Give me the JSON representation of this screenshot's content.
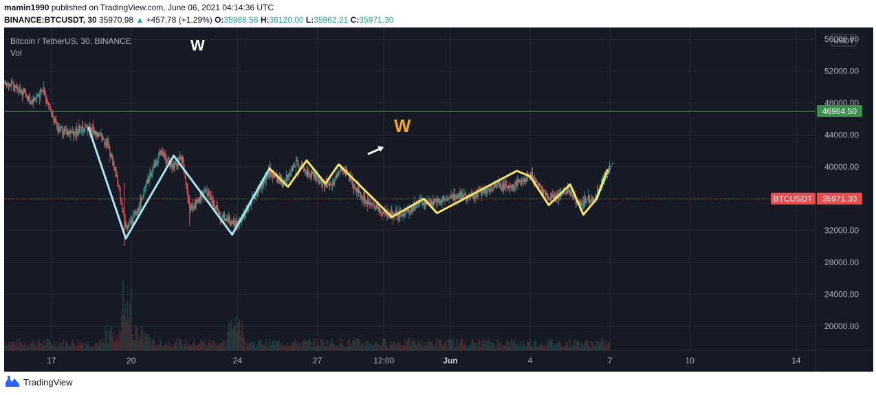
{
  "header": {
    "author": "mamin1990",
    "published_text": "published on TradingView.com, June 06, 2021 04:14:36 UTC",
    "symbol": "BINANCE:BTCUSDT, 30",
    "price": "35970.98",
    "change_icon": "triangle-up-icon",
    "change": "+457.78 (+1.29%)",
    "o_label": "O:",
    "o_value": "35988.56",
    "h_label": "H:",
    "h_value": "36120.00",
    "l_label": "L:",
    "l_value": "35962.21",
    "c_label": "C:",
    "c_value": "35971.30"
  },
  "legend": {
    "title": "Bitcoin / TetherUS, 30, BINANCE",
    "vol": "Vol"
  },
  "footer": {
    "brand": "TradingView",
    "logo_icon": "tradingview-logo-icon"
  },
  "colors": {
    "background": "#161a25",
    "grid": "#262a36",
    "up": "#26a69a",
    "down": "#ef5350",
    "white_pattern": "#a8e6ef",
    "yellow_pattern": "#f7e46a",
    "orange_label": "#f5a623",
    "hline": "#3d8f4e",
    "hline_badge": "#3d8f4e",
    "price_badge": "#e84c4c"
  },
  "chart_data": {
    "type": "candlestick",
    "title": "Bitcoin / TetherUS, 30, BINANCE",
    "currency": "USDT",
    "ylim": [
      17500,
      58000
    ],
    "y_ticks": [
      20000,
      24000,
      28000,
      32000,
      36000,
      40000,
      44000,
      48000,
      52000,
      56000
    ],
    "y_tick_labels": [
      "20000.00",
      "24000.00",
      "28000.00",
      "32000.00",
      "36000.00",
      "40000.00",
      "44000.00",
      "48000.00",
      "52000.00",
      "56000.00"
    ],
    "x_ticks": [
      {
        "label": "17",
        "t": 1.8
      },
      {
        "label": "20",
        "t": 4.8
      },
      {
        "label": "24",
        "t": 8.8
      },
      {
        "label": "27",
        "t": 11.8
      },
      {
        "label": "12:00",
        "t": 14.3
      },
      {
        "label": "Jun",
        "t": 16.8
      },
      {
        "label": "4",
        "t": 19.8
      },
      {
        "label": "7",
        "t": 22.8
      },
      {
        "label": "10",
        "t": 25.8
      },
      {
        "label": "14",
        "t": 29.8
      }
    ],
    "xlim": [
      0,
      30.5
    ],
    "price_path": [
      [
        0,
        50800
      ],
      [
        0.8,
        49300
      ],
      [
        1.0,
        48100
      ],
      [
        1.5,
        49600
      ],
      [
        2.0,
        45000
      ],
      [
        2.5,
        44200
      ],
      [
        3.2,
        45000
      ],
      [
        3.9,
        43000
      ],
      [
        4.3,
        38000
      ],
      [
        4.6,
        32300
      ],
      [
        5.0,
        34300
      ],
      [
        5.5,
        39000
      ],
      [
        5.9,
        41800
      ],
      [
        6.3,
        40200
      ],
      [
        6.7,
        41100
      ],
      [
        7.0,
        34600
      ],
      [
        7.6,
        37100
      ],
      [
        8.2,
        33600
      ],
      [
        8.8,
        32700
      ],
      [
        9.4,
        36200
      ],
      [
        10.0,
        39300
      ],
      [
        10.5,
        38100
      ],
      [
        11.0,
        40500
      ],
      [
        11.5,
        39000
      ],
      [
        12.3,
        37500
      ],
      [
        12.7,
        40000
      ],
      [
        13.5,
        36000
      ],
      [
        14.3,
        34200
      ],
      [
        15.0,
        34000
      ],
      [
        15.6,
        35500
      ],
      [
        16.2,
        35400
      ],
      [
        16.8,
        36400
      ],
      [
        17.5,
        36300
      ],
      [
        18.5,
        37500
      ],
      [
        19.2,
        37700
      ],
      [
        19.8,
        39000
      ],
      [
        20.5,
        36000
      ],
      [
        21.2,
        37000
      ],
      [
        21.6,
        35500
      ],
      [
        22.2,
        35900
      ],
      [
        22.8,
        40200
      ]
    ],
    "patterns": {
      "white": [
        [
          3.2,
          44900
        ],
        [
          4.6,
          31000
        ],
        [
          6.4,
          41400
        ],
        [
          8.6,
          31500
        ],
        [
          10.0,
          39800
        ]
      ],
      "yellow": [
        [
          10.0,
          39800
        ],
        [
          10.7,
          37500
        ],
        [
          11.4,
          40800
        ],
        [
          12.1,
          37900
        ],
        [
          12.6,
          40300
        ],
        [
          14.6,
          33700
        ],
        [
          15.8,
          36000
        ],
        [
          16.3,
          34200
        ],
        [
          19.3,
          39500
        ],
        [
          19.8,
          38800
        ],
        [
          20.5,
          35200
        ],
        [
          21.3,
          37800
        ],
        [
          21.8,
          34000
        ],
        [
          22.3,
          36000
        ],
        [
          22.7,
          39600
        ]
      ]
    },
    "annotations": [
      {
        "text": "W",
        "t": 7.3,
        "y": 54600,
        "color": "#ffffff",
        "size": 22
      },
      {
        "text": "W",
        "t": 15.0,
        "y": 44400,
        "color": "#f5a623",
        "size": 26
      },
      {
        "type": "arrow",
        "from": [
          13.7,
          41600
        ],
        "to": [
          14.3,
          42500
        ],
        "color": "#ffffff"
      }
    ],
    "horizontal_line": {
      "value": 46964.5,
      "label": "46964.50"
    },
    "last_price": {
      "value": 35971.3,
      "symbol": "BTCUSDT",
      "label": "35971.30"
    },
    "volume_max_approx": "low, mostly under 20000 line area"
  }
}
